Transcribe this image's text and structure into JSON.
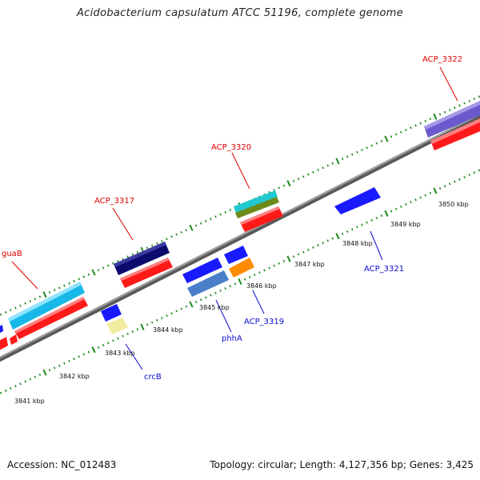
{
  "title": "Acidobacterium capsulatum ATCC 51196, complete genome",
  "footer": {
    "accession": "Accession: NC_012483",
    "summary": "Topology: circular; Length: 4,127,356 bp; Genes: 3,425"
  },
  "colors": {
    "backbone": "#8a8a8a",
    "tick": "#1f8a1f",
    "forward_label": "#e00000",
    "reverse_label": "#0a0ad0"
  },
  "scale_labels": [
    "3841 kbp",
    "3842 kbp",
    "3843 kbp",
    "3844 kbp",
    "3845 kbp",
    "3846 kbp",
    "3847 kbp",
    "3848 kbp",
    "3849 kbp",
    "3850 kbp"
  ],
  "gene_labels": {
    "forward": [
      "guaB",
      "ACP_3317",
      "ACP_3320",
      "ACP_3322"
    ],
    "reverse": [
      "crcB",
      "phhA",
      "ACP_3319",
      "ACP_3321"
    ]
  }
}
